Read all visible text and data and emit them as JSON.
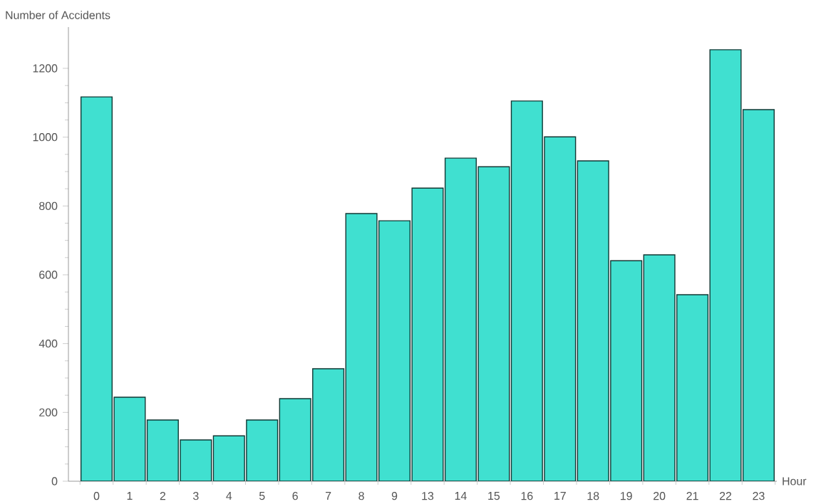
{
  "chart_data": {
    "type": "bar",
    "xlabel": "Hour",
    "ylabel": "Number of Accidents",
    "categories": [
      "0",
      "1",
      "2",
      "3",
      "4",
      "5",
      "6",
      "7",
      "8",
      "9",
      "13",
      "14",
      "15",
      "16",
      "17",
      "18",
      "19",
      "20",
      "21",
      "22",
      "23"
    ],
    "values": [
      1117,
      244,
      178,
      120,
      132,
      178,
      240,
      327,
      778,
      757,
      852,
      939,
      914,
      1105,
      1001,
      931,
      641,
      658,
      542,
      1254,
      1080
    ],
    "color": "#40e0d0",
    "ylim": [
      0,
      1320
    ],
    "yticks": [
      0,
      200,
      400,
      600,
      800,
      1000,
      1200
    ]
  }
}
